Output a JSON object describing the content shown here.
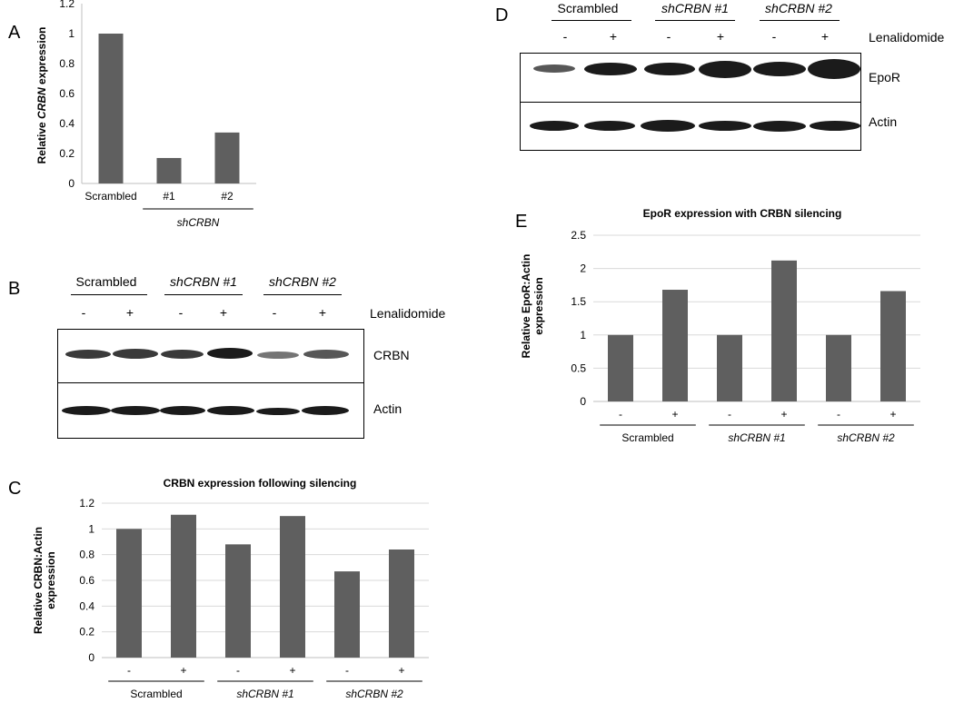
{
  "panels": {
    "A": "A",
    "B": "B",
    "C": "C",
    "D": "D",
    "E": "E"
  },
  "blot_B": {
    "groups": [
      "Scrambled",
      "shCRBN #1",
      "shCRBN #2"
    ],
    "treatments": [
      "-",
      "+",
      "-",
      "+",
      "-",
      "+"
    ],
    "treatment_label": "Lenalidomide",
    "rows": [
      "CRBN",
      "Actin"
    ]
  },
  "blot_D": {
    "groups": [
      "Scrambled",
      "shCRBN #1",
      "shCRBN #2"
    ],
    "treatments": [
      "-",
      "+",
      "-",
      "+",
      "-",
      "+"
    ],
    "treatment_label": "Lenalidomide",
    "rows": [
      "EpoR",
      "Actin"
    ]
  },
  "chart_data": [
    {
      "id": "A",
      "type": "bar",
      "title": "",
      "ylabel": "Relative CRBN expression",
      "xlabel": "",
      "categories": [
        "Scrambled",
        "#1",
        "#2"
      ],
      "group_label": "shCRBN",
      "values": [
        1.0,
        0.17,
        0.34
      ],
      "ylim": [
        0,
        1.2
      ],
      "yticks": [
        "0",
        "0.2",
        "0.4",
        "0.6",
        "0.8",
        "1",
        "1.2"
      ],
      "color": "#5f5f5f"
    },
    {
      "id": "C",
      "type": "bar",
      "title": "CRBN expression following silencing",
      "ylabel": "Relative CRBN:Actin expression",
      "xlabel": "",
      "categories": [
        "-",
        "+",
        "-",
        "+",
        "-",
        "+"
      ],
      "groups": [
        "Scrambled",
        "shCRBN #1",
        "shCRBN #2"
      ],
      "values": [
        1.0,
        1.11,
        0.88,
        1.1,
        0.67,
        0.84
      ],
      "ylim": [
        0,
        1.2
      ],
      "yticks": [
        "0",
        "0.2",
        "0.4",
        "0.6",
        "0.8",
        "1",
        "1.2"
      ],
      "color": "#5f5f5f"
    },
    {
      "id": "E",
      "type": "bar",
      "title": "EpoR expression with CRBN silencing",
      "ylabel": "Relative EpoR:Actin expression",
      "xlabel": "",
      "categories": [
        "-",
        "+",
        "-",
        "+",
        "-",
        "+"
      ],
      "groups": [
        "Scrambled",
        "shCRBN #1",
        "shCRBN #2"
      ],
      "values": [
        1.0,
        1.68,
        1.0,
        2.12,
        1.0,
        1.66
      ],
      "ylim": [
        0,
        2.5
      ],
      "yticks": [
        "0",
        "0.5",
        "1",
        "1.5",
        "2",
        "2.5"
      ],
      "color": "#5f5f5f"
    }
  ]
}
